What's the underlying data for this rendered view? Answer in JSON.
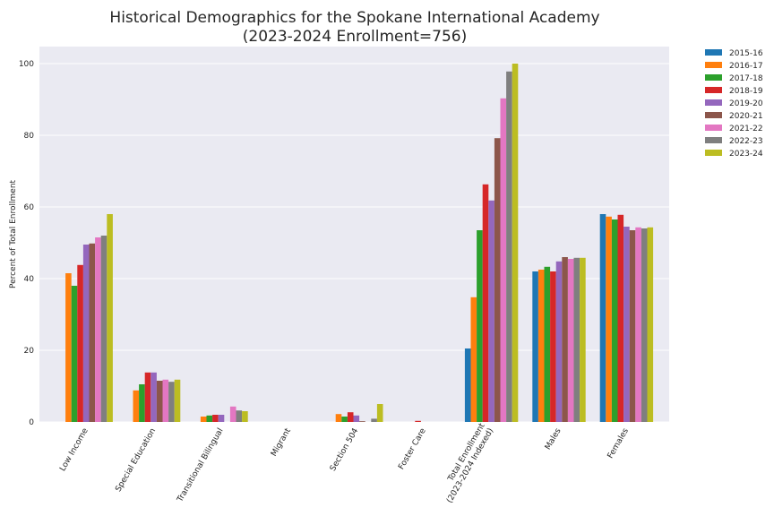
{
  "chart_data": {
    "type": "bar",
    "title": "Historical Demographics for the Spokane International Academy",
    "subtitle": "(2023-2024 Enrollment=756)",
    "xlabel": "",
    "ylabel": "Percent of Total Enrollment",
    "ylim": [
      0,
      105
    ],
    "yticks": [
      "0",
      "20",
      "40",
      "60",
      "80",
      "100"
    ],
    "grid": true,
    "legend_position": "outside-top-right",
    "categories": [
      "Low Income",
      "Special Education",
      "Transitional Bilingual",
      "Migrant",
      "Section 504",
      "Foster Care",
      "Total Enrollment\n(2023-2024 Indexed)",
      "Males",
      "Females"
    ],
    "series": [
      {
        "name": "2015-16",
        "color": "#1f77b4",
        "values": [
          0,
          0,
          0,
          0,
          0,
          0,
          20.5,
          42,
          58
        ]
      },
      {
        "name": "2016-17",
        "color": "#ff7f0e",
        "values": [
          41.5,
          8.8,
          1.5,
          0,
          2.2,
          0,
          34.8,
          42.5,
          57.3
        ]
      },
      {
        "name": "2017-18",
        "color": "#2ca02c",
        "values": [
          38,
          10.5,
          1.8,
          0,
          1.5,
          0,
          53.5,
          43.3,
          56.5
        ]
      },
      {
        "name": "2018-19",
        "color": "#d62728",
        "values": [
          43.8,
          13.8,
          2,
          0,
          2.7,
          0.3,
          66.3,
          42,
          57.8
        ]
      },
      {
        "name": "2019-20",
        "color": "#9467bd",
        "values": [
          49.5,
          13.8,
          2,
          0,
          1.8,
          0,
          61.8,
          44.8,
          54.5
        ]
      },
      {
        "name": "2020-21",
        "color": "#8c564b",
        "values": [
          49.8,
          11.5,
          0,
          0,
          0.2,
          0,
          79.2,
          46,
          53.5
        ]
      },
      {
        "name": "2021-22",
        "color": "#e377c2",
        "values": [
          51.5,
          11.8,
          4.3,
          0,
          0,
          0,
          90.3,
          45.5,
          54.3
        ]
      },
      {
        "name": "2022-23",
        "color": "#7f7f7f",
        "values": [
          52,
          11.2,
          3.2,
          0,
          0.9,
          0,
          97.8,
          45.8,
          54
        ]
      },
      {
        "name": "2023-24",
        "color": "#bcbd22",
        "values": [
          58,
          11.8,
          3,
          0,
          5,
          0,
          100,
          45.8,
          54.3
        ]
      }
    ]
  }
}
